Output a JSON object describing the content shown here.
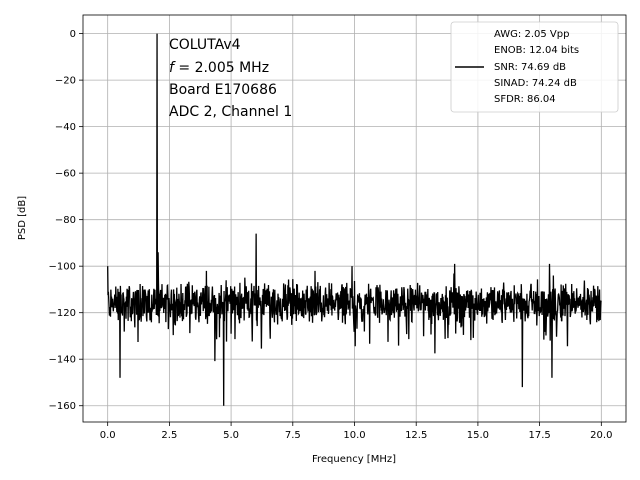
{
  "chart_data": {
    "type": "line",
    "xlabel": "Frequency [MHz]",
    "ylabel": "PSD [dB]",
    "xlim": [
      -1.0,
      21.0
    ],
    "ylim": [
      -167,
      8
    ],
    "grid": true,
    "x_ticks": [
      0.0,
      2.5,
      5.0,
      7.5,
      10.0,
      12.5,
      15.0,
      17.5,
      20.0
    ],
    "x_tick_labels": [
      "0.0",
      "2.5",
      "5.0",
      "7.5",
      "10.0",
      "12.5",
      "15.0",
      "17.5",
      "20.0"
    ],
    "y_ticks": [
      0,
      -20,
      -40,
      -60,
      -80,
      -100,
      -120,
      -140,
      -160
    ],
    "y_tick_labels": [
      "0",
      "−20",
      "−40",
      "−60",
      "−80",
      "−100",
      "−120",
      "−140",
      "−160"
    ],
    "annotation": {
      "line1": "COLUTAv4",
      "line2_var": "f",
      "line2_rest": " = 2.005 MHz",
      "line3": "Board E170686",
      "line4": "ADC 2, Channel 1"
    },
    "legend": {
      "placement": "top-right",
      "lines": [
        "AWG: 2.05 Vpp",
        "ENOB: 12.04 bits",
        "SNR: 74.69 dB",
        "SINAD: 74.24 dB",
        "SFDR: 86.04"
      ],
      "color": "#000000"
    },
    "series": [
      {
        "color": "#000000",
        "noise_floor_center": -116,
        "freq_range": [
          0.0,
          20.0
        ],
        "peaks": [
          {
            "x": 0.0,
            "y": -100
          },
          {
            "x": 2.005,
            "y": 0
          },
          {
            "x": 2.05,
            "y": -94
          },
          {
            "x": 4.0,
            "y": -102
          },
          {
            "x": 6.01,
            "y": -86
          },
          {
            "x": 8.4,
            "y": -102
          },
          {
            "x": 9.9,
            "y": -100
          },
          {
            "x": 14.05,
            "y": -99
          },
          {
            "x": 17.9,
            "y": -99
          }
        ],
        "dips": [
          {
            "x": 0.5,
            "y": -148
          },
          {
            "x": 4.7,
            "y": -160
          },
          {
            "x": 16.8,
            "y": -152
          },
          {
            "x": 18.0,
            "y": -148
          }
        ]
      }
    ]
  }
}
